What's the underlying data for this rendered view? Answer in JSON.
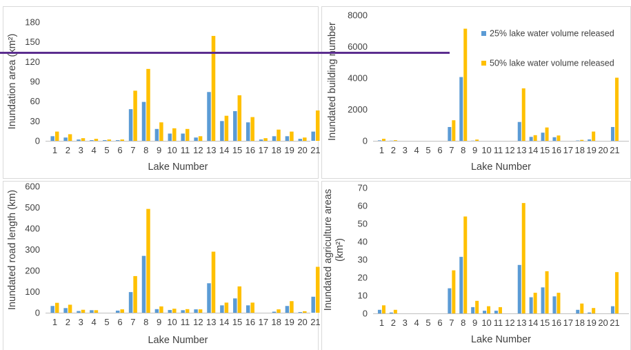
{
  "colors": {
    "series_25": "#5b9bd5",
    "series_50": "#ffc000",
    "overlay_line": "#5b2d8f",
    "panel_border": "#d9d9d9"
  },
  "chart_data": [
    {
      "type": "bar",
      "xlabel": "Lake Number",
      "ylabel": "Inundation area (km²)",
      "ylim": [
        0,
        180
      ],
      "yticks": [
        0,
        30,
        60,
        90,
        120,
        150,
        180
      ],
      "categories": [
        "1",
        "2",
        "3",
        "4",
        "5",
        "6",
        "7",
        "8",
        "9",
        "10",
        "11",
        "12",
        "13",
        "14",
        "15",
        "16",
        "17",
        "18",
        "19",
        "20",
        "21"
      ],
      "series": [
        {
          "name": "25% lake water volume released",
          "values": [
            7,
            5,
            2,
            1,
            1,
            1,
            48,
            59,
            18,
            11,
            11,
            5,
            74,
            30,
            45,
            28,
            2,
            7,
            7,
            3,
            14
          ]
        },
        {
          "name": "50% lake water volume released",
          "values": [
            14,
            10,
            4,
            3,
            2,
            2,
            76,
            109,
            28,
            19,
            18,
            7,
            159,
            38,
            69,
            36,
            4,
            17,
            14,
            5,
            46
          ]
        }
      ],
      "legend": "none"
    },
    {
      "type": "bar",
      "xlabel": "Lake Number",
      "ylabel": "Inundated building number",
      "ylim": [
        0,
        8000
      ],
      "yticks": [
        0,
        2000,
        4000,
        6000,
        8000
      ],
      "categories": [
        "1",
        "2",
        "3",
        "4",
        "5",
        "6",
        "7",
        "8",
        "9",
        "10",
        "11",
        "12",
        "13",
        "14",
        "15",
        "16",
        "17",
        "18",
        "19",
        "20",
        "21"
      ],
      "series": [
        {
          "name": "25% lake water volume released",
          "values": [
            30,
            10,
            0,
            0,
            0,
            0,
            880,
            4060,
            10,
            0,
            0,
            0,
            1200,
            250,
            520,
            230,
            0,
            20,
            90,
            0,
            880
          ]
        },
        {
          "name": "50% lake water volume released",
          "values": [
            130,
            40,
            0,
            0,
            0,
            0,
            1310,
            7140,
            80,
            0,
            0,
            0,
            3340,
            360,
            850,
            340,
            0,
            60,
            590,
            0,
            4020
          ]
        }
      ],
      "legend": "top-right",
      "legend_labels": [
        "25% lake water volume released",
        "50% lake water volume released"
      ]
    },
    {
      "type": "bar",
      "xlabel": "Lake Number",
      "ylabel": "Inundated road length (km)",
      "ylim": [
        0,
        600
      ],
      "yticks": [
        0,
        100,
        200,
        300,
        400,
        500,
        600
      ],
      "categories": [
        "1",
        "2",
        "3",
        "4",
        "5",
        "6",
        "7",
        "8",
        "9",
        "10",
        "11",
        "12",
        "13",
        "14",
        "15",
        "16",
        "17",
        "18",
        "19",
        "20",
        "21"
      ],
      "series": [
        {
          "name": "25% lake water volume released",
          "values": [
            32,
            22,
            8,
            12,
            0,
            10,
            98,
            270,
            17,
            13,
            12,
            16,
            140,
            35,
            68,
            35,
            0,
            5,
            32,
            3,
            76
          ]
        },
        {
          "name": "50% lake water volume released",
          "values": [
            47,
            38,
            14,
            12,
            0,
            16,
            174,
            493,
            30,
            19,
            17,
            16,
            290,
            48,
            125,
            48,
            0,
            16,
            55,
            7,
            218
          ]
        }
      ],
      "legend": "none"
    },
    {
      "type": "bar",
      "xlabel": "Lake Number",
      "ylabel_line1": "Inundated agriculture areas",
      "ylabel_line2": "(km²)",
      "ylim": [
        0,
        70
      ],
      "yticks": [
        0,
        10,
        20,
        30,
        40,
        50,
        60,
        70
      ],
      "categories": [
        "1",
        "2",
        "3",
        "4",
        "5",
        "6",
        "7",
        "8",
        "9",
        "10",
        "11",
        "12",
        "13",
        "14",
        "15",
        "16",
        "17",
        "18",
        "19",
        "20",
        "21"
      ],
      "series": [
        {
          "name": "25% lake water volume released",
          "values": [
            2,
            0.5,
            0,
            0,
            0,
            0,
            14,
            31.5,
            3.5,
            1.5,
            1.5,
            0,
            27,
            9,
            14.5,
            9.5,
            0,
            2,
            0.5,
            0,
            4
          ]
        },
        {
          "name": "50% lake water volume released",
          "values": [
            4.5,
            2,
            0,
            0,
            0,
            0,
            24,
            54,
            7,
            4,
            3.5,
            0,
            61.5,
            11.5,
            23.5,
            11.5,
            0,
            5.5,
            3,
            0,
            23
          ]
        }
      ],
      "legend": "none"
    }
  ]
}
